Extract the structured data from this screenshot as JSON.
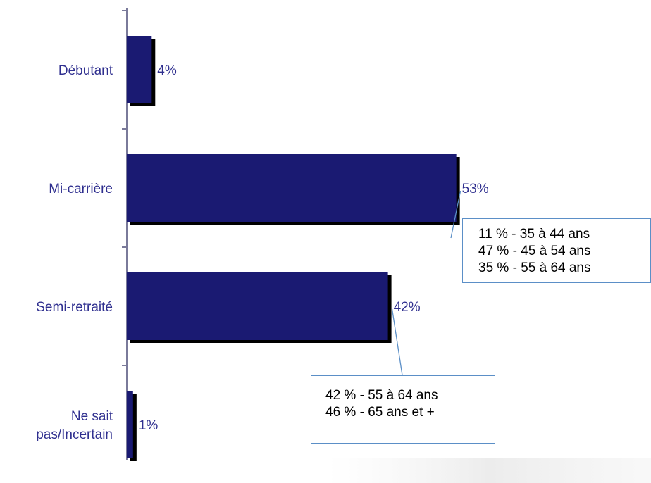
{
  "chart_data": {
    "type": "bar",
    "orientation": "horizontal",
    "categories": [
      "Débutant",
      "Mi-carrière",
      "Semi-retraité",
      "Ne sait pas/Incertain"
    ],
    "category_label_lines": [
      [
        "Débutant"
      ],
      [
        "Mi-carrière"
      ],
      [
        "Semi-retraité"
      ],
      [
        "Ne sait",
        "pas/Incertain"
      ]
    ],
    "values": [
      4,
      53,
      42,
      1
    ],
    "data_labels": [
      "4%",
      "53%",
      "42%",
      "1%"
    ],
    "xlim": [
      0,
      68
    ],
    "bar_color": "#1a1a72",
    "shadow_color": "#000000",
    "annotations": [
      {
        "category": "Mi-carrière",
        "lines": [
          "11 % - 35 à 44 ans",
          "47 % - 45 à 54 ans",
          "35 % - 55 à 64 ans"
        ]
      },
      {
        "category": "Semi-retraité",
        "lines": [
          "42 % - 55 à 64 ans",
          "46 % - 65 ans et +"
        ]
      }
    ]
  }
}
